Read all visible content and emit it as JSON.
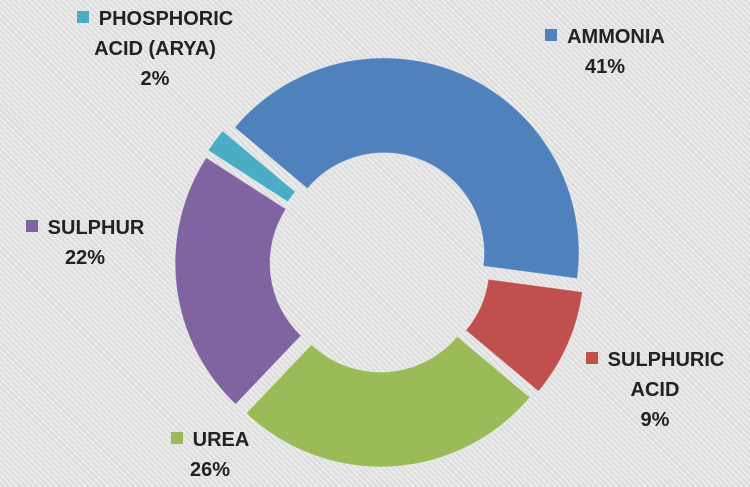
{
  "chart_data": {
    "type": "donut",
    "categories": [
      "AMMONIA",
      "SULPHURIC ACID",
      "UREA",
      "SULPHUR",
      "PHOSPHORIC ACID (ARYA)"
    ],
    "values": [
      41,
      9,
      26,
      22,
      2
    ],
    "value_labels": [
      "41%",
      "9%",
      "26%",
      "22%",
      "2%"
    ],
    "colors": [
      "#4f81bd",
      "#c0504d",
      "#9bbb59",
      "#8064a2",
      "#4bacc6"
    ]
  }
}
